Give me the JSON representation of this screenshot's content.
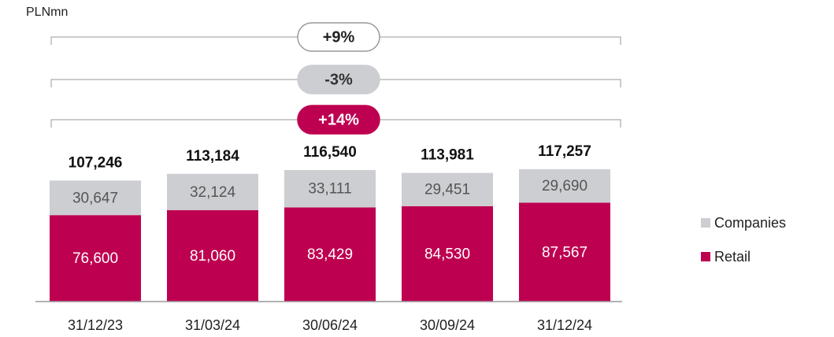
{
  "chart_data": {
    "type": "stacked_bar",
    "unit_label": "PLNmn",
    "categories": [
      "31/12/23",
      "31/03/24",
      "30/06/24",
      "30/09/24",
      "31/12/24"
    ],
    "series": [
      {
        "name": "Retail",
        "color": "#be0050",
        "values": [
          76600,
          81060,
          83429,
          84530,
          87567
        ],
        "value_labels": [
          "76,600",
          "81,060",
          "83,429",
          "84,530",
          "87,567"
        ]
      },
      {
        "name": "Companies",
        "color": "#ccced1",
        "values": [
          30647,
          32124,
          33111,
          29451,
          29690
        ],
        "value_labels": [
          "30,647",
          "32,124",
          "33,111",
          "29,451",
          "29,690"
        ]
      }
    ],
    "totals": [
      107246,
      113184,
      116540,
      113981,
      117257
    ],
    "total_labels": [
      "107,246",
      "113,184",
      "116,540",
      "113,981",
      "117,257"
    ],
    "annotations": [
      {
        "label": "+9%",
        "fill": "#ffffff",
        "stroke": "#999999",
        "text_color": "#222222"
      },
      {
        "label": "-3%",
        "fill": "#ccced1",
        "stroke": "#ccced1",
        "text_color": "#333333"
      },
      {
        "label": "+14%",
        "fill": "#be0050",
        "stroke": "#be0050",
        "text_color": "#ffffff"
      }
    ],
    "ylim": [
      0,
      120000
    ],
    "legend": "right"
  }
}
